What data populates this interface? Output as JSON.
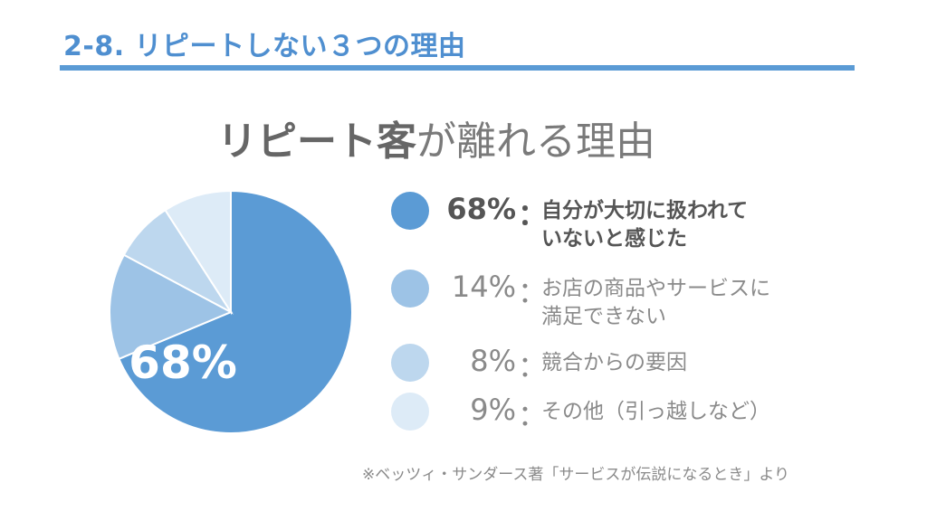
{
  "header": {
    "title": "2-8. リピートしない３つの理由"
  },
  "subtitle": {
    "strong": "リピート客",
    "rest": "が離れる理由"
  },
  "chart_data": {
    "type": "pie",
    "title": "",
    "center_label": "68%",
    "slices": [
      {
        "label": "自分が大切に扱われていないと感じた",
        "value": 68,
        "color": "#5b9bd5",
        "label_text": "68%"
      },
      {
        "label": "お店の商品やサービスに満足できない",
        "value": 14,
        "color": "#9dc3e6",
        "label_text": "14%"
      },
      {
        "label": "競合からの要因",
        "value": 8,
        "color": "#bdd7ee",
        "label_text": "8%"
      },
      {
        "label": "その他（引っ越しなど）",
        "value": 9,
        "color": "#ddebf7",
        "label_text": "9%"
      }
    ]
  },
  "legend": [
    {
      "pct": "68%",
      "colon": "：",
      "lines": [
        "自分が大切に扱われて",
        "いないと感じた"
      ],
      "color": "#5b9bd5"
    },
    {
      "pct": "14%",
      "colon": "：",
      "lines": [
        "お店の商品やサービスに",
        "満足できない"
      ],
      "color": "#9dc3e6"
    },
    {
      "pct": "8%",
      "colon": "：",
      "lines": [
        "競合からの要因"
      ],
      "color": "#bdd7ee"
    },
    {
      "pct": "9%",
      "colon": "：",
      "lines": [
        "その他（引っ越しなど）"
      ],
      "color": "#ddebf7"
    }
  ],
  "footnote": "※ベッツィ・サンダース著「サービスが伝説になるとき」より"
}
